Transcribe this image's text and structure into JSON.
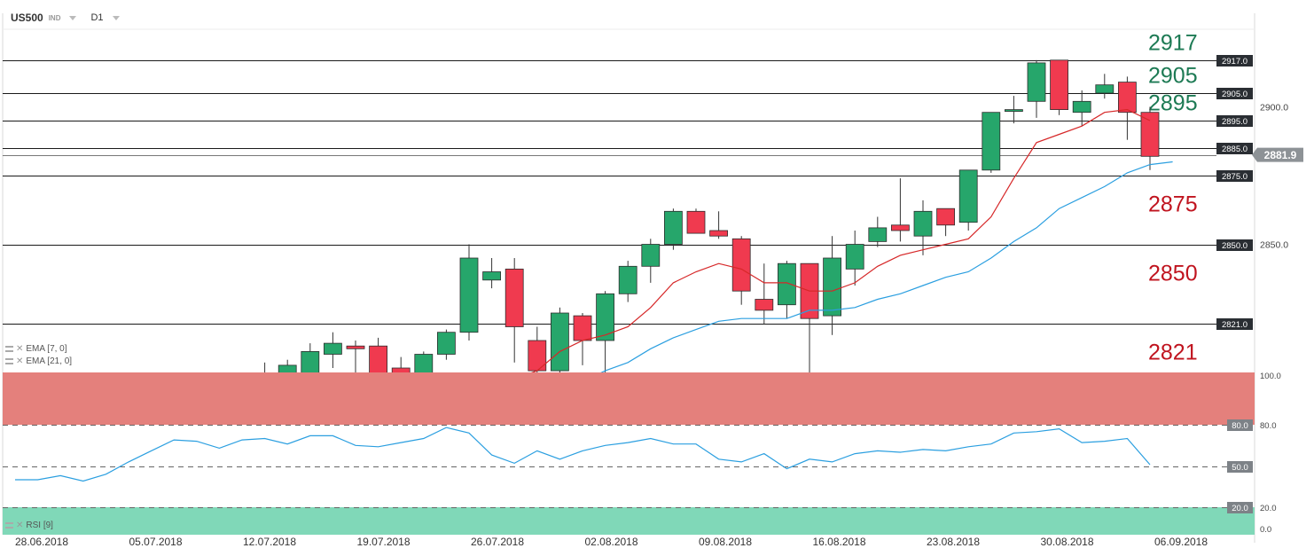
{
  "header": {
    "symbol": "US500",
    "badge": "IND",
    "timeframe": "D1"
  },
  "legend": {
    "ema_short": "EMA  [7,  0]",
    "ema_long": "EMA  [21,  0]",
    "rsi": "RSI  [9]"
  },
  "colors": {
    "bull": "#26a66b",
    "bear": "#f03a4f",
    "ema_short": "#d62728",
    "ema_long": "#2b9fe0",
    "rsi_line": "#2b9fe0",
    "overbought_zone": "#e4807c",
    "oversold_zone": "#80d8b8",
    "resistance_label": "#1d7a54",
    "support_label": "#c0141f"
  },
  "chart_data": [
    {
      "type": "candlestick",
      "title": "US500",
      "timeframe": "D1",
      "x_tick_labels": [
        "28.06.2018",
        "05.07.2018",
        "12.07.2018",
        "19.07.2018",
        "26.07.2018",
        "02.08.2018",
        "09.08.2018",
        "16.08.2018",
        "23.08.2018",
        "30.08.2018",
        "06.09.2018"
      ],
      "y_tick_labels": [
        {
          "value": 2900,
          "text": "2900.0"
        },
        {
          "value": 2850,
          "text": "2850.0"
        }
      ],
      "ylim": [
        2803,
        2932
      ],
      "current_price": {
        "value": 2881.9,
        "text": "2881.9"
      },
      "horizontal_levels": [
        {
          "value": 2917,
          "tag": "2917.0",
          "label": "2917",
          "kind": "resistance"
        },
        {
          "value": 2905,
          "tag": "2905.0",
          "label": "2905",
          "kind": "resistance"
        },
        {
          "value": 2895,
          "tag": "2895.0",
          "label": "2895",
          "kind": "resistance"
        },
        {
          "value": 2885,
          "tag": "2885.0",
          "label": "",
          "kind": "level"
        },
        {
          "value": 2875,
          "tag": "2875.0",
          "label": "2875",
          "kind": "support"
        },
        {
          "value": 2850,
          "tag": "2850.0",
          "label": "2850",
          "kind": "support"
        },
        {
          "value": 2821,
          "tag": "2821.0",
          "label": "2821",
          "kind": "support"
        }
      ],
      "candles": [
        {
          "i": 11,
          "o": 2802,
          "h": 2807,
          "l": 2790,
          "c": 2792
        },
        {
          "i": 12,
          "o": 2795,
          "h": 2808,
          "l": 2793,
          "c": 2806
        },
        {
          "i": 13,
          "o": 2798,
          "h": 2814,
          "l": 2796,
          "c": 2811
        },
        {
          "i": 14,
          "o": 2810,
          "h": 2818,
          "l": 2805,
          "c": 2814
        },
        {
          "i": 15,
          "o": 2813,
          "h": 2815,
          "l": 2803,
          "c": 2812
        },
        {
          "i": 16,
          "o": 2813,
          "h": 2816,
          "l": 2802,
          "c": 2803
        },
        {
          "i": 17,
          "o": 2805,
          "h": 2809,
          "l": 2800,
          "c": 2802
        },
        {
          "i": 18,
          "o": 2802,
          "h": 2811,
          "l": 2800,
          "c": 2810
        },
        {
          "i": 19,
          "o": 2810,
          "h": 2819,
          "l": 2808,
          "c": 2818
        },
        {
          "i": 20,
          "o": 2818,
          "h": 2850,
          "l": 2815,
          "c": 2845
        },
        {
          "i": 21,
          "o": 2837,
          "h": 2845,
          "l": 2834,
          "c": 2840
        },
        {
          "i": 22,
          "o": 2841,
          "h": 2845,
          "l": 2807,
          "c": 2820
        },
        {
          "i": 23,
          "o": 2815,
          "h": 2820,
          "l": 2799,
          "c": 2804
        },
        {
          "i": 24,
          "o": 2804,
          "h": 2827,
          "l": 2802,
          "c": 2825
        },
        {
          "i": 25,
          "o": 2824,
          "h": 2825,
          "l": 2806,
          "c": 2815
        },
        {
          "i": 26,
          "o": 2815,
          "h": 2833,
          "l": 2800,
          "c": 2832
        },
        {
          "i": 27,
          "o": 2832,
          "h": 2844,
          "l": 2829,
          "c": 2842
        },
        {
          "i": 28,
          "o": 2842,
          "h": 2852,
          "l": 2836,
          "c": 2850
        },
        {
          "i": 29,
          "o": 2850,
          "h": 2863,
          "l": 2848,
          "c": 2862
        },
        {
          "i": 30,
          "o": 2862,
          "h": 2863,
          "l": 2854,
          "c": 2854
        },
        {
          "i": 31,
          "o": 2855,
          "h": 2862,
          "l": 2852,
          "c": 2853
        },
        {
          "i": 32,
          "o": 2852,
          "h": 2853,
          "l": 2828,
          "c": 2833
        },
        {
          "i": 33,
          "o": 2830,
          "h": 2843,
          "l": 2821,
          "c": 2826
        },
        {
          "i": 34,
          "o": 2828,
          "h": 2844,
          "l": 2823,
          "c": 2843
        },
        {
          "i": 35,
          "o": 2843,
          "h": 2843,
          "l": 2802,
          "c": 2823
        },
        {
          "i": 36,
          "o": 2824,
          "h": 2853,
          "l": 2817,
          "c": 2845
        },
        {
          "i": 37,
          "o": 2841,
          "h": 2855,
          "l": 2835,
          "c": 2850
        },
        {
          "i": 38,
          "o": 2851,
          "h": 2860,
          "l": 2849,
          "c": 2856
        },
        {
          "i": 39,
          "o": 2857,
          "h": 2874,
          "l": 2851,
          "c": 2855
        },
        {
          "i": 40,
          "o": 2853,
          "h": 2866,
          "l": 2846,
          "c": 2862
        },
        {
          "i": 41,
          "o": 2863,
          "h": 2863,
          "l": 2853,
          "c": 2857
        },
        {
          "i": 42,
          "o": 2858,
          "h": 2877,
          "l": 2855,
          "c": 2877
        },
        {
          "i": 43,
          "o": 2877,
          "h": 2898,
          "l": 2876,
          "c": 2898
        },
        {
          "i": 44,
          "o": 2899,
          "h": 2904,
          "l": 2894,
          "c": 2899
        },
        {
          "i": 45,
          "o": 2902,
          "h": 2917,
          "l": 2896,
          "c": 2916
        },
        {
          "i": 46,
          "o": 2917,
          "h": 2917,
          "l": 2897,
          "c": 2899
        },
        {
          "i": 47,
          "o": 2898,
          "h": 2906,
          "l": 2893,
          "c": 2902
        },
        {
          "i": 48,
          "o": 2905,
          "h": 2912,
          "l": 2903,
          "c": 2908
        },
        {
          "i": 49,
          "o": 2909,
          "h": 2911,
          "l": 2888,
          "c": 2898
        },
        {
          "i": 50,
          "o": 2898,
          "h": 2900,
          "l": 2877,
          "c": 2882
        }
      ],
      "ema_7": [
        [
          22,
          2801
        ],
        [
          23,
          2804
        ],
        [
          24,
          2811
        ],
        [
          25,
          2815
        ],
        [
          26,
          2817
        ],
        [
          27,
          2820
        ],
        [
          28,
          2827
        ],
        [
          29,
          2836
        ],
        [
          30,
          2840
        ],
        [
          31,
          2843
        ],
        [
          32,
          2841
        ],
        [
          33,
          2836
        ],
        [
          34,
          2836
        ],
        [
          35,
          2833
        ],
        [
          36,
          2833
        ],
        [
          37,
          2836
        ],
        [
          38,
          2842
        ],
        [
          39,
          2846
        ],
        [
          40,
          2848
        ],
        [
          41,
          2850
        ],
        [
          42,
          2852
        ],
        [
          43,
          2860
        ],
        [
          44,
          2874
        ],
        [
          45,
          2887
        ],
        [
          46,
          2890
        ],
        [
          47,
          2893
        ],
        [
          48,
          2898
        ],
        [
          49,
          2899
        ],
        [
          50,
          2895
        ]
      ],
      "ema_21": [
        [
          25,
          2800
        ],
        [
          26,
          2804
        ],
        [
          27,
          2807
        ],
        [
          28,
          2812
        ],
        [
          29,
          2816
        ],
        [
          30,
          2819
        ],
        [
          31,
          2822
        ],
        [
          32,
          2823
        ],
        [
          33,
          2823
        ],
        [
          34,
          2823
        ],
        [
          35,
          2826
        ],
        [
          36,
          2826
        ],
        [
          37,
          2827
        ],
        [
          38,
          2830
        ],
        [
          39,
          2832
        ],
        [
          40,
          2835
        ],
        [
          41,
          2838
        ],
        [
          42,
          2840
        ],
        [
          43,
          2845
        ],
        [
          44,
          2851
        ],
        [
          45,
          2856
        ],
        [
          46,
          2863
        ],
        [
          47,
          2867
        ],
        [
          48,
          2871
        ],
        [
          49,
          2876
        ],
        [
          50,
          2879
        ],
        [
          51,
          2880
        ]
      ]
    },
    {
      "type": "line",
      "title": "RSI [9]",
      "ylim": [
        0,
        100
      ],
      "y_tick_labels": [
        "100.0",
        "80.0",
        "20.0",
        "0.0"
      ],
      "levels": [
        {
          "value": 80,
          "tag": "80.0"
        },
        {
          "value": 50,
          "tag": "50.0"
        },
        {
          "value": 20,
          "tag": "20.0"
        }
      ],
      "series": [
        {
          "x": [
            0,
            1,
            2,
            3,
            4,
            5,
            6,
            7,
            8,
            9,
            10,
            11,
            12,
            13,
            14,
            15,
            16,
            17,
            18,
            19,
            20,
            21,
            22,
            23,
            24,
            25,
            26,
            27,
            28,
            29,
            30,
            31,
            32,
            33,
            34,
            35,
            36,
            37,
            38,
            39,
            40,
            41,
            42,
            43,
            44,
            45,
            46,
            47,
            48,
            49,
            50
          ],
          "values": [
            40,
            40,
            43,
            39,
            44,
            53,
            61,
            69,
            68,
            63,
            69,
            70,
            66,
            72,
            72,
            65,
            64,
            67,
            70,
            78,
            74,
            58,
            52,
            61,
            55,
            61,
            65,
            67,
            70,
            66,
            66,
            55,
            53,
            59,
            48,
            55,
            53,
            59,
            61,
            60,
            62,
            61,
            64,
            66,
            74,
            75,
            77,
            67,
            68,
            70,
            51
          ]
        }
      ]
    }
  ]
}
